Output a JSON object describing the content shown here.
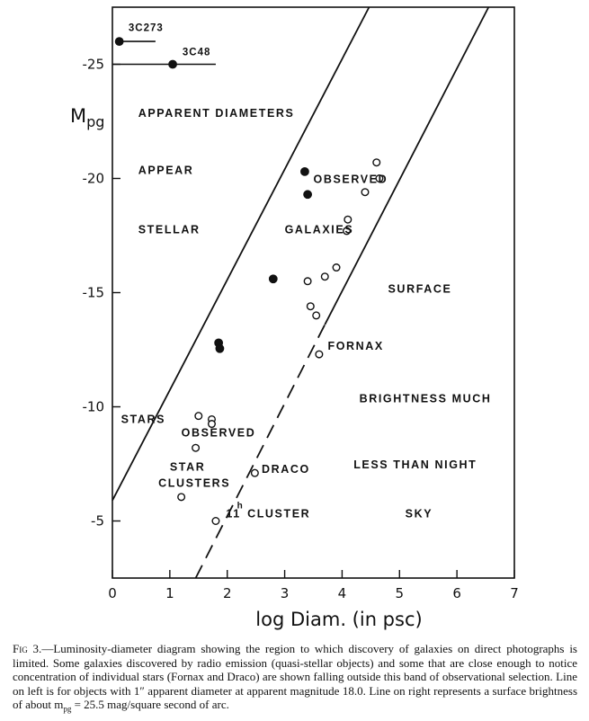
{
  "chart_data": {
    "type": "scatter",
    "xlabel": "log Diam. (in psc)",
    "ylabel": "Mpg",
    "xlim": [
      0,
      7
    ],
    "ylim": [
      -2.5,
      -27.5
    ],
    "x_ticks": [
      0,
      1,
      2,
      3,
      4,
      5,
      6,
      7
    ],
    "y_ticks": [
      -5,
      -10,
      -15,
      -20,
      -25
    ],
    "x_tick_labels": [
      "0",
      "1",
      "2",
      "3",
      "4",
      "5",
      "6",
      "7"
    ],
    "y_tick_labels": [
      "-5",
      "-10",
      "-15",
      "-20",
      "-25"
    ],
    "series": [
      {
        "marker": "filled-circle",
        "points": [
          {
            "x": 0.12,
            "y": -26.0
          },
          {
            "x": 1.05,
            "y": -25.0
          },
          {
            "x": 3.35,
            "y": -20.3
          },
          {
            "x": 3.4,
            "y": -19.3
          },
          {
            "x": 2.8,
            "y": -15.6
          },
          {
            "x": 1.85,
            "y": -12.8
          },
          {
            "x": 1.87,
            "y": -12.55
          }
        ]
      },
      {
        "marker": "open-circle",
        "points": [
          {
            "x": 4.6,
            "y": -20.7
          },
          {
            "x": 4.65,
            "y": -20.0
          },
          {
            "x": 4.4,
            "y": -19.4
          },
          {
            "x": 4.1,
            "y": -18.2
          },
          {
            "x": 4.08,
            "y": -17.7
          },
          {
            "x": 3.9,
            "y": -16.1
          },
          {
            "x": 3.7,
            "y": -15.7
          },
          {
            "x": 3.4,
            "y": -15.5
          },
          {
            "x": 3.45,
            "y": -14.4
          },
          {
            "x": 3.55,
            "y": -14.0
          },
          {
            "x": 3.6,
            "y": -12.3
          },
          {
            "x": 1.5,
            "y": -9.6
          },
          {
            "x": 1.73,
            "y": -9.45
          },
          {
            "x": 1.73,
            "y": -9.25
          },
          {
            "x": 1.45,
            "y": -8.2
          },
          {
            "x": 2.48,
            "y": -7.1
          },
          {
            "x": 1.2,
            "y": -6.05
          },
          {
            "x": 1.8,
            "y": -5.0
          }
        ]
      }
    ],
    "error_bars": [
      {
        "y": -26.0,
        "x_from": 0.12,
        "x_to": 0.75
      },
      {
        "y": -25.0,
        "x_from": 0.0,
        "x_to": 1.8
      }
    ],
    "lines": [
      {
        "style": "solid",
        "from": [
          0,
          -5.9
        ],
        "to": [
          4.47,
          -27.5
        ]
      },
      {
        "style": "solid",
        "from": [
          3.7,
          -13.6
        ],
        "to": [
          6.55,
          -27.5
        ]
      },
      {
        "style": "dashed",
        "from": [
          1.45,
          -2.5
        ],
        "to": [
          3.7,
          -13.6
        ]
      }
    ],
    "point_labels": [
      {
        "text": "3C273",
        "x": 0.28,
        "y": -26.45
      },
      {
        "text": "3C48",
        "x": 1.22,
        "y": -25.4
      }
    ],
    "annotations": [
      {
        "text": "APPARENT  DIAMETERS",
        "x": 0.45,
        "y": -22.7
      },
      {
        "text": "APPEAR",
        "x": 0.45,
        "y": -20.2
      },
      {
        "text": "STELLAR",
        "x": 0.45,
        "y": -17.6
      },
      {
        "text": "OBSERVED",
        "x": 3.5,
        "y": -19.8
      },
      {
        "text": "GALAXIES",
        "x": 3.0,
        "y": -17.6
      },
      {
        "text": "SURFACE",
        "x": 4.8,
        "y": -15.0
      },
      {
        "text": "FORNAX",
        "x": 3.75,
        "y": -12.5
      },
      {
        "text": "BRIGHTNESS MUCH",
        "x": 4.3,
        "y": -10.2
      },
      {
        "text": "STARS",
        "x": 0.15,
        "y": -9.3
      },
      {
        "text": "OBSERVED",
        "x": 1.2,
        "y": -8.7
      },
      {
        "text": "LESS THAN NIGHT",
        "x": 4.2,
        "y": -7.3
      },
      {
        "text": "STAR",
        "x": 1.0,
        "y": -7.2
      },
      {
        "text": "DRACO",
        "x": 2.6,
        "y": -7.1
      },
      {
        "text": "CLUSTERS",
        "x": 0.8,
        "y": -6.5
      },
      {
        "text": "11",
        "x": 1.98,
        "y": -5.15
      },
      {
        "text": "h",
        "x": 2.17,
        "y": -5.55
      },
      {
        "text": "CLUSTER",
        "x": 2.35,
        "y": -5.15
      },
      {
        "text": "SKY",
        "x": 5.1,
        "y": -5.15
      }
    ]
  },
  "caption": {
    "label": "Fig 3.",
    "text": "—Luminosity-diameter diagram showing the region to which discovery of galaxies on direct photographs is limited. Some galaxies discovered by radio emission (quasi-stellar objects) and some that are close enough to notice concentration of individual stars (Fornax and Draco) are shown falling outside this band of observational selection. Line on left is for objects with 1″ apparent diameter at apparent magnitude 18.0. Line on right represents a surface brightness of about m",
    "subscript": "pg",
    "tail": " = 25.5 mag/square second of arc."
  }
}
